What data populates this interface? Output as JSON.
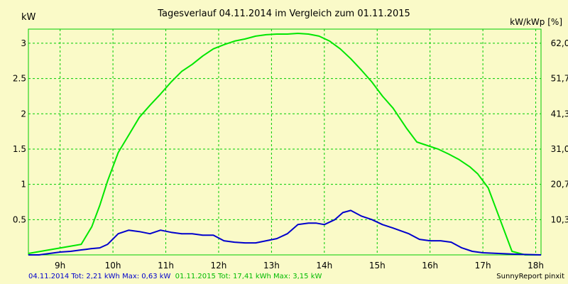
{
  "chart_data": {
    "type": "line",
    "title": "Tagesverlauf 04.11.2014 im Vergleich zum 01.11.2015",
    "ylabel_left": "kW",
    "ylabel_right": "kW/kWp [%]",
    "x_ticks": [
      "9h",
      "10h",
      "11h",
      "12h",
      "13h",
      "14h",
      "15h",
      "16h",
      "17h",
      "18h"
    ],
    "y_ticks_left": [
      "0.5",
      "1",
      "1.5",
      "2",
      "2.5",
      "3"
    ],
    "y_ticks_right": [
      "10,3",
      "20,7",
      "31,0",
      "41,3",
      "51,7",
      "62,0"
    ],
    "xlim": [
      8.4,
      18.1
    ],
    "ylim": [
      0,
      3.2
    ],
    "grid": true,
    "colors": {
      "background": "#fafac8",
      "grid": "#00cc00",
      "green_series": "#00e600",
      "blue_series": "#0000cc"
    },
    "series": [
      {
        "name": "01.11.2015",
        "color": "#00e600",
        "x": [
          8.4,
          9.4,
          9.6,
          9.75,
          9.9,
          10.1,
          10.3,
          10.5,
          10.7,
          10.9,
          11.1,
          11.3,
          11.5,
          11.7,
          11.9,
          12.1,
          12.3,
          12.5,
          12.7,
          12.9,
          13.1,
          13.3,
          13.5,
          13.7,
          13.9,
          14.1,
          14.3,
          14.5,
          14.7,
          14.9,
          15.1,
          15.3,
          15.55,
          15.75,
          15.95,
          16.15,
          16.35,
          16.55,
          16.75,
          16.9,
          17.1,
          17.3,
          17.55,
          17.8,
          18.1
        ],
        "y": [
          0.02,
          0.15,
          0.4,
          0.7,
          1.05,
          1.45,
          1.7,
          1.95,
          2.12,
          2.28,
          2.45,
          2.6,
          2.7,
          2.82,
          2.92,
          2.98,
          3.03,
          3.06,
          3.1,
          3.12,
          3.13,
          3.13,
          3.14,
          3.13,
          3.1,
          3.03,
          2.92,
          2.78,
          2.62,
          2.45,
          2.25,
          2.08,
          1.8,
          1.6,
          1.55,
          1.5,
          1.43,
          1.35,
          1.25,
          1.15,
          0.95,
          0.55,
          0.05,
          0.0,
          0.0
        ]
      },
      {
        "name": "04.11.2014",
        "color": "#0000cc",
        "x": [
          8.4,
          8.6,
          8.8,
          9.0,
          9.2,
          9.4,
          9.5,
          9.6,
          9.75,
          9.9,
          10.1,
          10.3,
          10.5,
          10.7,
          10.9,
          11.1,
          11.3,
          11.5,
          11.7,
          11.9,
          12.1,
          12.3,
          12.5,
          12.7,
          12.9,
          13.1,
          13.3,
          13.5,
          13.7,
          13.85,
          14.0,
          14.2,
          14.35,
          14.5,
          14.7,
          14.9,
          15.1,
          15.3,
          15.6,
          15.8,
          16.0,
          16.2,
          16.4,
          16.6,
          16.8,
          17.0,
          17.3,
          17.6,
          18.1
        ],
        "y": [
          0.0,
          0.0,
          0.02,
          0.04,
          0.05,
          0.07,
          0.08,
          0.09,
          0.1,
          0.15,
          0.3,
          0.35,
          0.33,
          0.3,
          0.35,
          0.32,
          0.3,
          0.3,
          0.28,
          0.28,
          0.2,
          0.18,
          0.17,
          0.17,
          0.2,
          0.23,
          0.3,
          0.43,
          0.45,
          0.45,
          0.43,
          0.5,
          0.6,
          0.63,
          0.55,
          0.5,
          0.43,
          0.38,
          0.3,
          0.22,
          0.2,
          0.2,
          0.18,
          0.1,
          0.05,
          0.03,
          0.02,
          0.01,
          0.0
        ]
      }
    ]
  },
  "footer": {
    "blue_text": "04.11.2014 Tot: 2,21 kWh Max: 0,63 kW",
    "green_text": "01.11.2015 Tot: 17,41 kWh Max: 3,15 kW",
    "branding": "SunnyReport pinxit"
  }
}
